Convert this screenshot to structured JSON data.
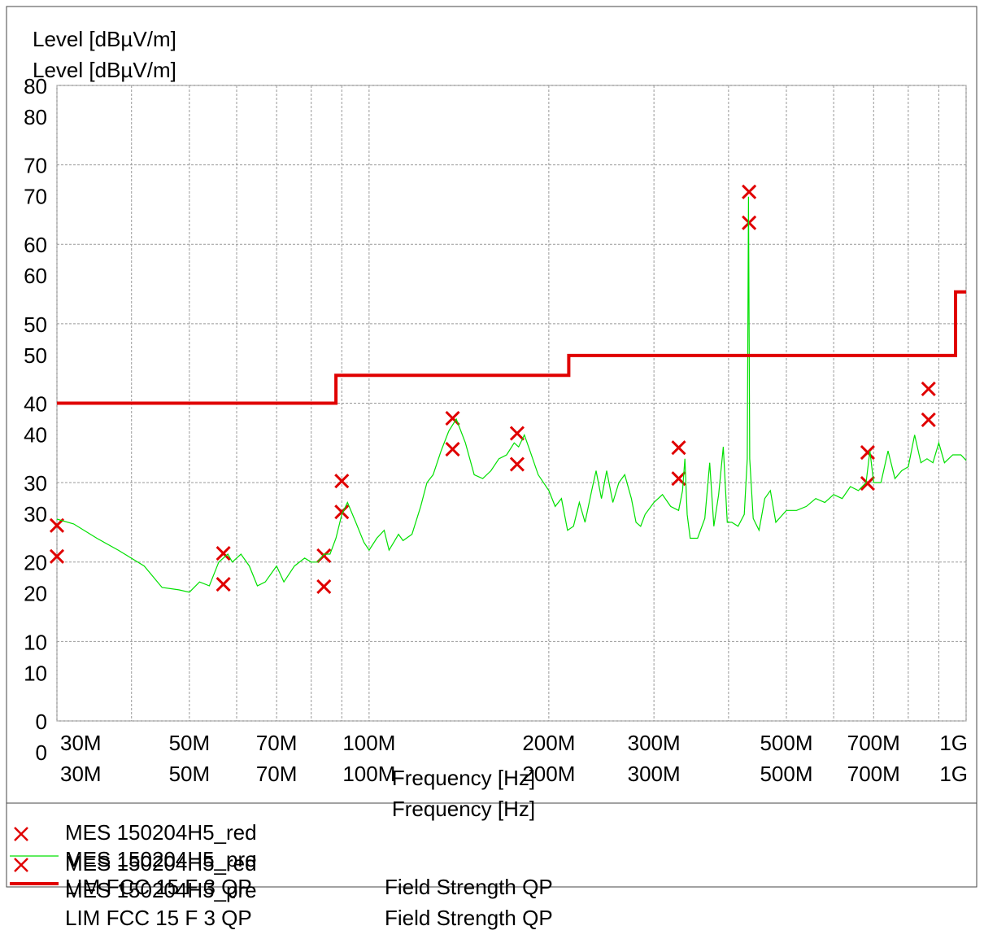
{
  "chart_data": {
    "type": "line",
    "title": "Level [dBµV/m]",
    "x_label": "Frequency [Hz]",
    "xscale": "log",
    "xlim": [
      30000000.0,
      1000000000.0
    ],
    "ylim": [
      0,
      80
    ],
    "xticks": [
      {
        "value": 30000000.0,
        "label": "30M"
      },
      {
        "value": 50000000.0,
        "label": "50M"
      },
      {
        "value": 70000000.0,
        "label": "70M"
      },
      {
        "value": 100000000.0,
        "label": "100M"
      },
      {
        "value": 200000000.0,
        "label": "200M"
      },
      {
        "value": 300000000.0,
        "label": "300M"
      },
      {
        "value": 500000000.0,
        "label": "500M"
      },
      {
        "value": 700000000.0,
        "label": "700M"
      },
      {
        "value": 1000000000.0,
        "label": "1G"
      }
    ],
    "xminor": [
      40000000.0,
      60000000.0,
      80000000.0,
      90000000.0,
      400000000.0,
      600000000.0,
      800000000.0,
      900000000.0
    ],
    "yticks": [
      0,
      10,
      20,
      30,
      40,
      50,
      60,
      70,
      80
    ],
    "grid": true,
    "series": [
      {
        "name": "MES  150204H5_red",
        "color": "#e00000",
        "marker": "x",
        "x": [
          30000000.0,
          57000000.0,
          84000000.0,
          90000000.0,
          138000000.0,
          177000000.0,
          330000000.0,
          433000000.0,
          684000000.0,
          865000000.0
        ],
        "values": [
          24.6,
          21.1,
          20.8,
          30.2,
          38.1,
          36.2,
          34.4,
          66.6,
          33.8,
          41.8
        ]
      },
      {
        "name": "MES  150204H5_pre",
        "color": "#00e000",
        "marker": "line",
        "x": [
          30000000.0,
          32000000.0,
          35000000.0,
          38000000.0,
          42000000.0,
          45000000.0,
          48000000.0,
          50000000.0,
          52000000.0,
          54000000.0,
          56000000.0,
          58000000.0,
          59000000.0,
          61000000.0,
          63000000.0,
          65000000.0,
          67000000.0,
          70000000.0,
          72000000.0,
          75000000.0,
          78000000.0,
          80000000.0,
          82000000.0,
          84000000.0,
          86000000.0,
          88000000.0,
          90000000.0,
          92000000.0,
          95000000.0,
          98000000.0,
          100000000.0,
          103000000.0,
          106000000.0,
          108000000.0,
          110000000.0,
          112000000.0,
          114000000.0,
          118000000.0,
          122000000.0,
          125000000.0,
          128000000.0,
          132000000.0,
          136000000.0,
          140000000.0,
          145000000.0,
          150000000.0,
          155000000.0,
          160000000.0,
          165000000.0,
          170000000.0,
          175000000.0,
          178000000.0,
          182000000.0,
          186000000.0,
          192000000.0,
          200000000.0,
          205000000.0,
          210000000.0,
          215000000.0,
          220000000.0,
          225000000.0,
          230000000.0,
          236000000.0,
          240000000.0,
          245000000.0,
          250000000.0,
          256000000.0,
          262000000.0,
          268000000.0,
          275000000.0,
          280000000.0,
          285000000.0,
          290000000.0,
          300000000.0,
          310000000.0,
          320000000.0,
          330000000.0,
          335000000.0,
          338000000.0,
          341000000.0,
          345000000.0,
          355000000.0,
          365000000.0,
          372000000.0,
          378000000.0,
          385000000.0,
          392000000.0,
          398000000.0,
          405000000.0,
          415000000.0,
          425000000.0,
          430000000.0,
          432000000.0,
          434000000.0,
          440000000.0,
          450000000.0,
          460000000.0,
          470000000.0,
          480000000.0,
          500000000.0,
          520000000.0,
          540000000.0,
          560000000.0,
          580000000.0,
          600000000.0,
          620000000.0,
          640000000.0,
          660000000.0,
          680000000.0,
          690000000.0,
          700000000.0,
          720000000.0,
          740000000.0,
          760000000.0,
          780000000.0,
          800000000.0,
          820000000.0,
          840000000.0,
          860000000.0,
          880000000.0,
          900000000.0,
          920000000.0,
          950000000.0,
          980000000.0,
          1000000000.0
        ],
        "values": [
          25.4,
          24.8,
          23,
          21.5,
          19.5,
          16.8,
          16.5,
          16.2,
          17.5,
          17,
          20,
          21,
          20,
          21,
          19.5,
          17,
          17.5,
          19.5,
          17.5,
          19.5,
          20.5,
          20,
          20,
          21,
          21,
          23,
          26,
          27.5,
          25,
          22.5,
          21.5,
          23,
          24,
          21.5,
          22.5,
          23.5,
          22.7,
          23.5,
          27,
          30,
          31,
          34,
          36.5,
          38,
          35,
          31,
          30.5,
          31.5,
          33,
          33.5,
          35,
          34.5,
          36,
          34,
          31,
          29,
          27,
          28,
          24,
          24.5,
          27.5,
          25,
          29,
          31.5,
          28,
          31.5,
          27.5,
          30,
          31,
          28,
          25,
          24.5,
          26,
          27.5,
          28.5,
          27,
          26.5,
          29,
          33,
          26,
          23,
          23,
          25.5,
          32.5,
          24.5,
          28.5,
          34.5,
          25,
          25,
          24.5,
          26,
          33,
          66,
          33,
          25.5,
          24,
          28,
          29,
          25,
          26.5,
          26.5,
          27,
          28,
          27.5,
          28.5,
          28,
          29.5,
          29,
          30,
          34,
          30,
          30,
          34,
          30.5,
          31.5,
          32,
          36,
          32.5,
          33,
          32.5,
          35,
          32.5,
          33.5,
          33.5,
          32.8
        ]
      },
      {
        "name": "LIM  FCC 15 F 3 QP",
        "description": "Field Strength QP",
        "color": "#e00000",
        "marker": "thick-line",
        "x": [
          30000000.0,
          88000000.0,
          88000000.0,
          216000000.0,
          216000000.0,
          960000000.0,
          960000000.0,
          1000000000.0
        ],
        "values": [
          40,
          40,
          43.5,
          43.5,
          46,
          46,
          54,
          54
        ]
      }
    ]
  }
}
